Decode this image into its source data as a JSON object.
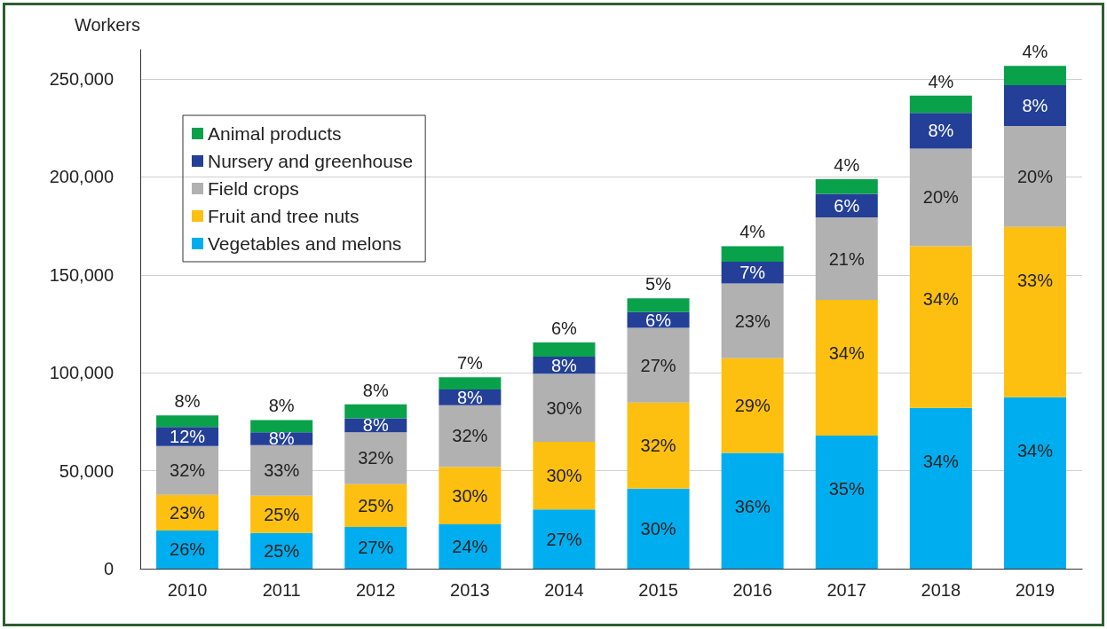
{
  "chart_data": {
    "type": "bar",
    "stacked": true,
    "ylabel": "Workers",
    "categories": [
      "2010",
      "2011",
      "2012",
      "2013",
      "2014",
      "2015",
      "2016",
      "2017",
      "2018",
      "2019"
    ],
    "series": [
      {
        "name": "Vegetables and melons",
        "color": "#00aeef",
        "values": [
          19500,
          18200,
          21300,
          22600,
          30200,
          40900,
          59100,
          67900,
          82100,
          87500
        ]
      },
      {
        "name": "Fruit and tree nuts",
        "color": "#fdc010",
        "values": [
          18200,
          19100,
          21800,
          29400,
          34600,
          43900,
          48400,
          69300,
          82600,
          87000
        ]
      },
      {
        "name": "Field crops",
        "color": "#b1b1b1",
        "values": [
          24900,
          25800,
          26600,
          31500,
          34700,
          38200,
          38100,
          42200,
          49800,
          51500
        ]
      },
      {
        "name": "Nursery and greenhouse",
        "color": "#233f98",
        "values": [
          9800,
          6600,
          7100,
          8000,
          8800,
          8000,
          11100,
          12000,
          18200,
          20900
        ]
      },
      {
        "name": "Animal products",
        "color": "#0aa14b",
        "values": [
          5800,
          6200,
          7100,
          6200,
          7200,
          7100,
          8000,
          7500,
          8900,
          9800
        ]
      }
    ],
    "annotations": [
      {
        "text": "26%",
        "x": "2010",
        "y": 19500
      },
      {
        "text": "23%",
        "x": "2010",
        "y": 37700
      },
      {
        "text": "32%",
        "x": "2010",
        "y": 62600
      },
      {
        "text": "12%",
        "x": "2010",
        "y": 72400
      },
      {
        "text": "8%",
        "x": "2010",
        "y": 78200
      },
      {
        "text": "25%",
        "x": "2011",
        "y": 18200
      },
      {
        "text": "25%",
        "x": "2011",
        "y": 37300
      },
      {
        "text": "33%",
        "x": "2011",
        "y": 63100
      },
      {
        "text": "8%",
        "x": "2011",
        "y": 69700
      },
      {
        "text": "8%",
        "x": "2011",
        "y": 75900
      },
      {
        "text": "27%",
        "x": "2012",
        "y": 21300
      },
      {
        "text": "25%",
        "x": "2012",
        "y": 43100
      },
      {
        "text": "32%",
        "x": "2012",
        "y": 69700
      },
      {
        "text": "8%",
        "x": "2012",
        "y": 76800
      },
      {
        "text": "8%",
        "x": "2012",
        "y": 83900
      },
      {
        "text": "24%",
        "x": "2013",
        "y": 22600
      },
      {
        "text": "30%",
        "x": "2013",
        "y": 52000
      },
      {
        "text": "32%",
        "x": "2013",
        "y": 83500
      },
      {
        "text": "8%",
        "x": "2013",
        "y": 91500
      },
      {
        "text": "7%",
        "x": "2013",
        "y": 97700
      },
      {
        "text": "27%",
        "x": "2014",
        "y": 30200
      },
      {
        "text": "30%",
        "x": "2014",
        "y": 64800
      },
      {
        "text": "30%",
        "x": "2014",
        "y": 99500
      },
      {
        "text": "8%",
        "x": "2014",
        "y": 108300
      },
      {
        "text": "6%",
        "x": "2014",
        "y": 115500
      },
      {
        "text": "30%",
        "x": "2015",
        "y": 40900
      },
      {
        "text": "32%",
        "x": "2015",
        "y": 84800
      },
      {
        "text": "27%",
        "x": "2015",
        "y": 123000
      },
      {
        "text": "6%",
        "x": "2015",
        "y": 131000
      },
      {
        "text": "5%",
        "x": "2015",
        "y": 138100
      },
      {
        "text": "36%",
        "x": "2016",
        "y": 59100
      },
      {
        "text": "29%",
        "x": "2016",
        "y": 107500
      },
      {
        "text": "23%",
        "x": "2016",
        "y": 145600
      },
      {
        "text": "7%",
        "x": "2016",
        "y": 156700
      },
      {
        "text": "4%",
        "x": "2016",
        "y": 164700
      },
      {
        "text": "35%",
        "x": "2017",
        "y": 67900
      },
      {
        "text": "34%",
        "x": "2017",
        "y": 137200
      },
      {
        "text": "21%",
        "x": "2017",
        "y": 179400
      },
      {
        "text": "6%",
        "x": "2017",
        "y": 191400
      },
      {
        "text": "4%",
        "x": "2017",
        "y": 198900
      },
      {
        "text": "34%",
        "x": "2018",
        "y": 82100
      },
      {
        "text": "34%",
        "x": "2018",
        "y": 164700
      },
      {
        "text": "20%",
        "x": "2018",
        "y": 214500
      },
      {
        "text": "8%",
        "x": "2018",
        "y": 232700
      },
      {
        "text": "4%",
        "x": "2018",
        "y": 241600
      },
      {
        "text": "34%",
        "x": "2019",
        "y": 87500
      },
      {
        "text": "33%",
        "x": "2019",
        "y": 174500
      },
      {
        "text": "20%",
        "x": "2019",
        "y": 226000
      },
      {
        "text": "8%",
        "x": "2019",
        "y": 246900
      },
      {
        "text": "4%",
        "x": "2019",
        "y": 256700
      }
    ],
    "ylim": [
      0,
      265000
    ],
    "yticks": [
      0,
      {
        "value": 50000,
        "label": "50,000"
      },
      {
        "value": 100000,
        "label": "100,000"
      },
      {
        "value": 150000,
        "label": "150,000"
      },
      {
        "value": 200000,
        "label": "200,000"
      },
      {
        "value": 250000,
        "label": "250,000"
      }
    ],
    "grid": "y",
    "legend": "top left"
  }
}
